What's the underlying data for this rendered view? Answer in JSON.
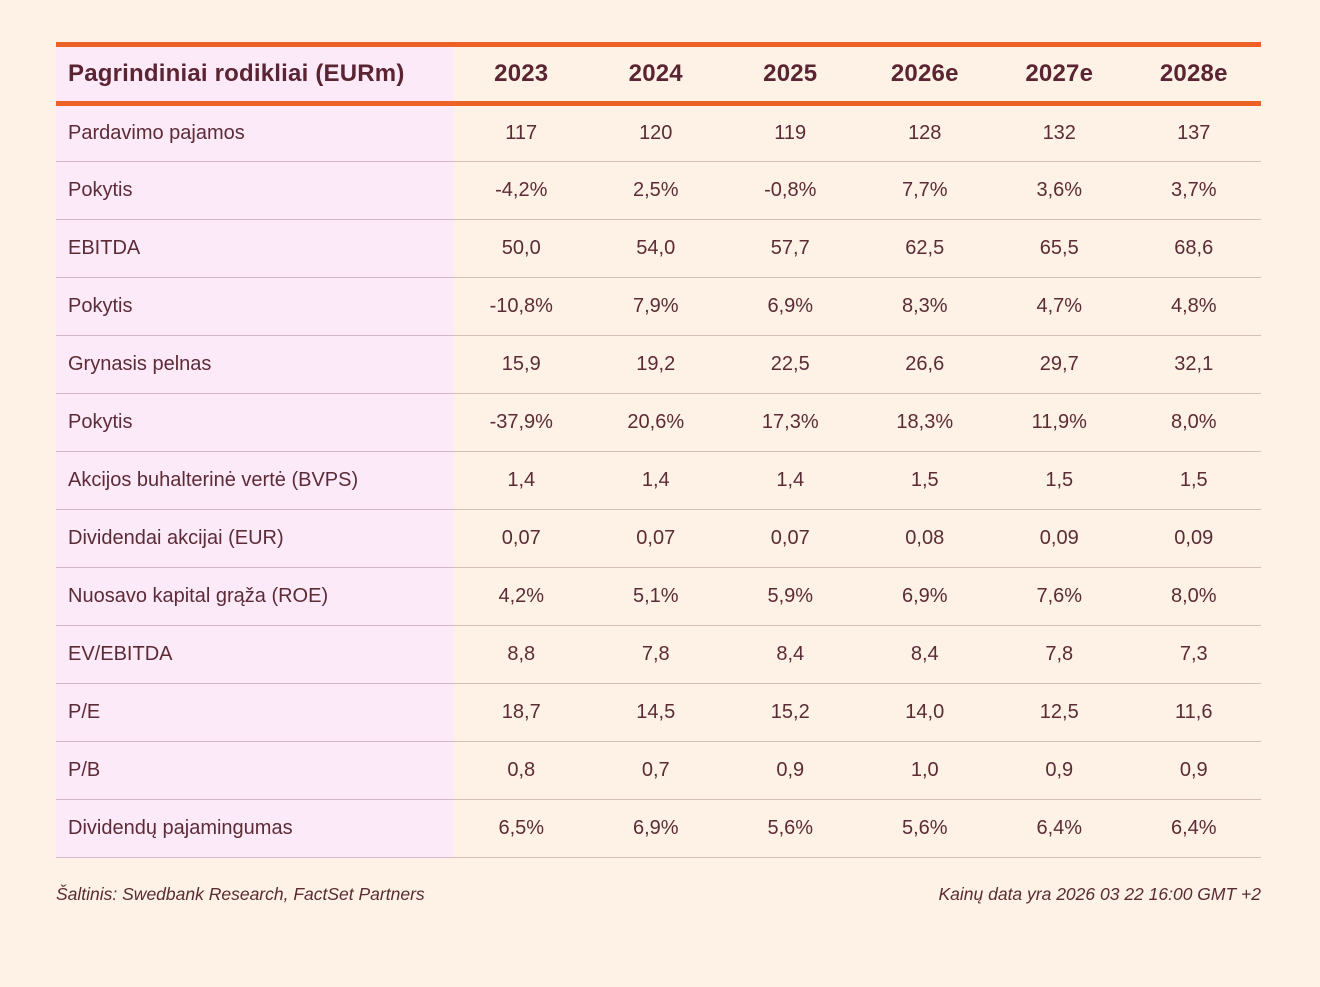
{
  "colors": {
    "page_background": "#FDF2E5",
    "label_column_background": "#FCEAF9",
    "header_rule_orange": "#EC6226",
    "text_maroon": "#5C2B35"
  },
  "table": {
    "header": {
      "label": "Pagrindiniai rodikliai (EURm)",
      "columns": [
        "2023",
        "2024",
        "2025",
        "2026e",
        "2027e",
        "2028e"
      ]
    },
    "rows": [
      {
        "label": "Pardavimo pajamos",
        "values": [
          "117",
          "120",
          "119",
          "128",
          "132",
          "137"
        ]
      },
      {
        "label": "Pokytis",
        "values": [
          "-4,2%",
          "2,5%",
          "-0,8%",
          "7,7%",
          "3,6%",
          "3,7%"
        ]
      },
      {
        "label": "EBITDA",
        "values": [
          "50,0",
          "54,0",
          "57,7",
          "62,5",
          "65,5",
          "68,6"
        ]
      },
      {
        "label": "Pokytis",
        "values": [
          "-10,8%",
          "7,9%",
          "6,9%",
          "8,3%",
          "4,7%",
          "4,8%"
        ]
      },
      {
        "label": "Grynasis pelnas",
        "values": [
          "15,9",
          "19,2",
          "22,5",
          "26,6",
          "29,7",
          "32,1"
        ]
      },
      {
        "label": "Pokytis",
        "values": [
          "-37,9%",
          "20,6%",
          "17,3%",
          "18,3%",
          "11,9%",
          "8,0%"
        ]
      },
      {
        "label": "Akcijos buhalterinė vertė (BVPS)",
        "values": [
          "1,4",
          "1,4",
          "1,4",
          "1,5",
          "1,5",
          "1,5"
        ]
      },
      {
        "label": "Dividendai akcijai (EUR)",
        "values": [
          "0,07",
          "0,07",
          "0,07",
          "0,08",
          "0,09",
          "0,09"
        ]
      },
      {
        "label": "Nuosavo kapital grąža (ROE)",
        "values": [
          "4,2%",
          "5,1%",
          "5,9%",
          "6,9%",
          "7,6%",
          "8,0%"
        ]
      },
      {
        "label": "EV/EBITDA",
        "values": [
          "8,8",
          "7,8",
          "8,4",
          "8,4",
          "7,8",
          "7,3"
        ]
      },
      {
        "label": "P/E",
        "values": [
          "18,7",
          "14,5",
          "15,2",
          "14,0",
          "12,5",
          "11,6"
        ]
      },
      {
        "label": "P/B",
        "values": [
          "0,8",
          "0,7",
          "0,9",
          "1,0",
          "0,9",
          "0,9"
        ]
      },
      {
        "label": "Dividendų pajamingumas",
        "values": [
          "6,5%",
          "6,9%",
          "5,6%",
          "5,6%",
          "6,4%",
          "6,4%"
        ]
      }
    ]
  },
  "footer": {
    "source": "Šaltinis: Swedbank Research, FactSet Partners",
    "price_note": "Kainų data yra 2026 03 22 16:00 GMT +2"
  }
}
